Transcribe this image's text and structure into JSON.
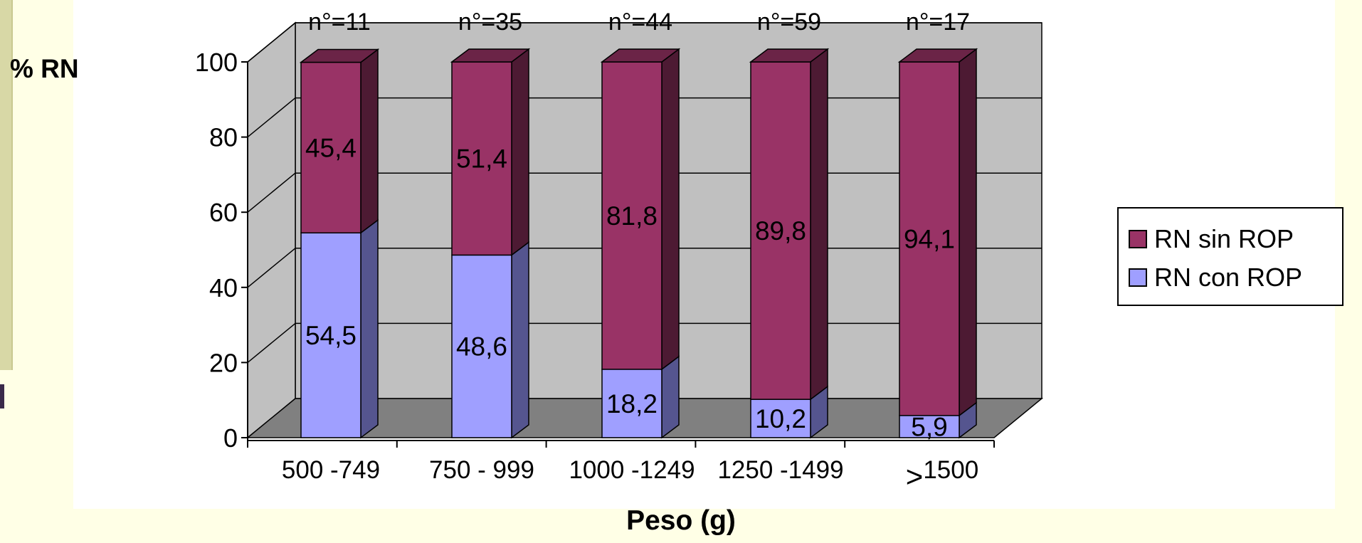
{
  "chart_data": {
    "type": "bar",
    "stacked": true,
    "categories": [
      "500 -749",
      "750 - 999",
      "1000 -1249",
      "1250 -1499",
      ">1500"
    ],
    "category_glyphs": [
      {
        "prefix": "",
        "text": "500 -749"
      },
      {
        "prefix": "",
        "text": "750 - 999"
      },
      {
        "prefix": "",
        "text": "1000 -1249"
      },
      {
        "prefix": "",
        "text": "1250 -1499"
      },
      {
        "prefix": ">",
        "text": "1500"
      }
    ],
    "n_labels": [
      "n°=11",
      "n°=35",
      "n°=44",
      "n°=59",
      "n°=17"
    ],
    "series": [
      {
        "name": "RN con ROP",
        "values": [
          54.5,
          48.6,
          18.2,
          10.2,
          5.9
        ],
        "labels": [
          "54,5",
          "48,6",
          "18,2",
          "10,2",
          "5,9"
        ],
        "color": "#9f9fff",
        "side_color": "#55558f",
        "top_color": "#7777c4"
      },
      {
        "name": "RN sin ROP",
        "values": [
          45.4,
          51.4,
          81.8,
          89.8,
          94.1
        ],
        "labels": [
          "45,4",
          "51,4",
          "81,8",
          "89,8",
          "94,1"
        ],
        "color": "#993366",
        "side_color": "#4d1a33",
        "top_color": "#6b2447"
      }
    ],
    "legend_order": [
      "RN sin ROP",
      "RN con ROP"
    ],
    "ylabel": "% RN",
    "xlabel": "Peso (g)",
    "yticks": [
      "0",
      "20",
      "40",
      "60",
      "80",
      "100"
    ],
    "ylim": [
      0,
      100
    ],
    "grid": true,
    "legend": "right",
    "wall_color": "#c0c0c0",
    "floor_color": "#808080"
  }
}
